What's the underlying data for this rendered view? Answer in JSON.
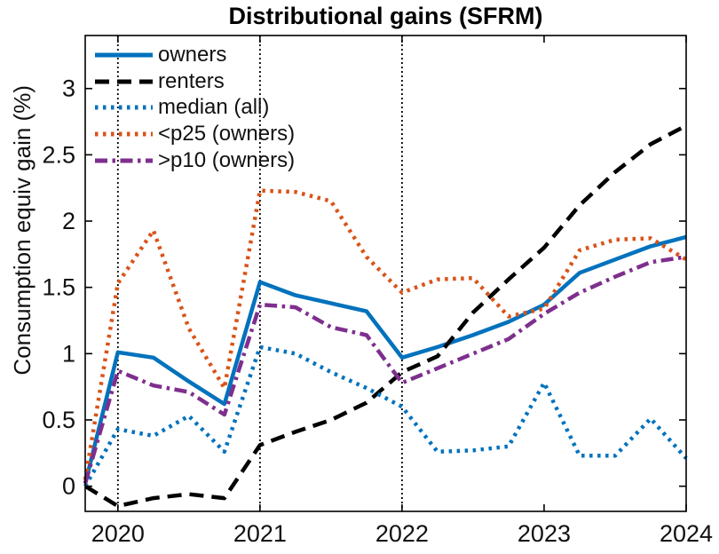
{
  "colors": {
    "blue": "#0072BD",
    "orange": "#D95319",
    "purple": "#7E2F8E",
    "black": "#000000",
    "axis": "#000000",
    "vline": "#000000",
    "text": "#111111",
    "background": "#ffffff"
  },
  "chart_data": {
    "type": "line",
    "title": "Distributional gains (SFRM)",
    "xlabel": "",
    "ylabel": "Consumption equiv gain (%)",
    "xlim": [
      2019.77,
      2024
    ],
    "ylim": [
      -0.19,
      3.4
    ],
    "grid": false,
    "legend_position": "top-left-inside-no-box",
    "vlines": [
      2020,
      2021,
      2022
    ],
    "line_width": 4.5,
    "xticks": {
      "values": [
        2020,
        2021,
        2022,
        2023,
        2024
      ],
      "labels": [
        "2020",
        "2021",
        "2022",
        "2023",
        "2024"
      ]
    },
    "yticks": {
      "values": [
        0,
        0.5,
        1,
        1.5,
        2,
        2.5,
        3
      ],
      "labels": [
        "0",
        "0.5",
        "1",
        "1.5",
        "2",
        "2.5",
        "3"
      ]
    },
    "x": [
      2019.77,
      2020,
      2020.25,
      2020.5,
      2020.75,
      2021,
      2021.25,
      2021.5,
      2021.75,
      2022,
      2022.25,
      2022.5,
      2022.75,
      2023,
      2023.25,
      2023.5,
      2023.75,
      2024
    ],
    "series": [
      {
        "id": "owners",
        "name": "owners",
        "color": "#0072BD",
        "style": "solid",
        "values": [
          0.02,
          1.01,
          0.97,
          0.79,
          0.62,
          1.54,
          1.44,
          1.38,
          1.32,
          0.97,
          1.05,
          1.14,
          1.24,
          1.37,
          1.61,
          1.71,
          1.81,
          1.88
        ]
      },
      {
        "id": "renters",
        "name": "renters",
        "color": "#000000",
        "style": "dashed",
        "values": [
          0.0,
          -0.15,
          -0.09,
          -0.06,
          -0.09,
          0.31,
          0.41,
          0.5,
          0.63,
          0.86,
          0.98,
          1.31,
          1.56,
          1.8,
          2.12,
          2.37,
          2.58,
          2.72
        ]
      },
      {
        "id": "median-all",
        "name": "median (all)",
        "color": "#0072BD",
        "style": "dotted",
        "values": [
          0.0,
          0.43,
          0.38,
          0.53,
          0.26,
          1.05,
          1.0,
          0.86,
          0.74,
          0.6,
          0.26,
          0.27,
          0.3,
          0.78,
          0.23,
          0.23,
          0.51,
          0.21
        ]
      },
      {
        "id": "p25-owners",
        "name": "<p25 (owners)",
        "color": "#D95319",
        "style": "dotted",
        "values": [
          0.05,
          1.53,
          1.93,
          1.19,
          0.74,
          2.23,
          2.22,
          2.15,
          1.73,
          1.46,
          1.56,
          1.57,
          1.28,
          1.34,
          1.78,
          1.86,
          1.87,
          1.71
        ]
      },
      {
        "id": "p10-owners",
        "name": ">p10 (owners)",
        "color": "#7E2F8E",
        "style": "dashdot",
        "values": [
          0.02,
          0.87,
          0.76,
          0.71,
          0.54,
          1.37,
          1.35,
          1.2,
          1.14,
          0.78,
          0.89,
          1.0,
          1.11,
          1.3,
          1.46,
          1.58,
          1.69,
          1.73
        ]
      }
    ]
  }
}
